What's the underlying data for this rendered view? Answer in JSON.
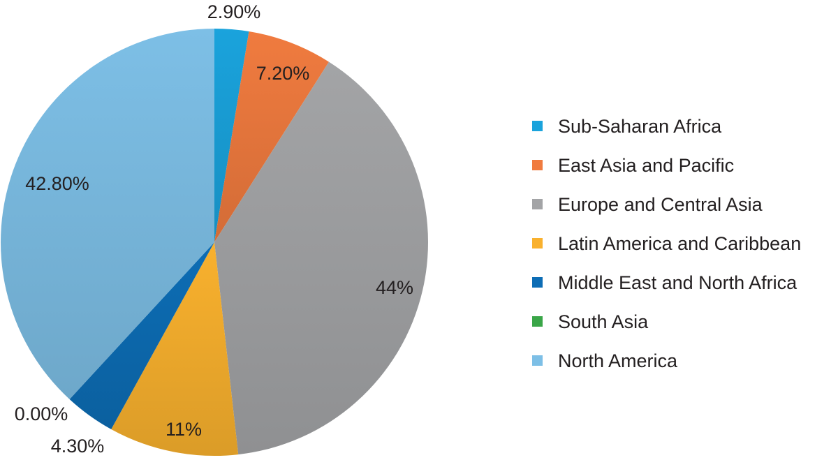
{
  "chart_data": {
    "type": "pie",
    "title": "",
    "categories": [
      "Sub-Saharan Africa",
      "East Asia and Pacific",
      "Europe and Central Asia",
      "Latin America and Caribbean",
      "Middle East and North Africa",
      "South Asia",
      "North America"
    ],
    "values": [
      2.9,
      7.2,
      44,
      11,
      4.3,
      0.0,
      42.8
    ],
    "value_labels": [
      "2.90%",
      "7.20%",
      "44%",
      "11%",
      "4.30%",
      "0.00%",
      "42.80%"
    ],
    "colors": [
      "#1aa3dc",
      "#f07b3f",
      "#a3a4a6",
      "#f9b12e",
      "#0d6db5",
      "#3aa648",
      "#7dbfe6"
    ],
    "start_angle": "12 o'clock",
    "direction": "clockwise",
    "legend_position": "right"
  }
}
